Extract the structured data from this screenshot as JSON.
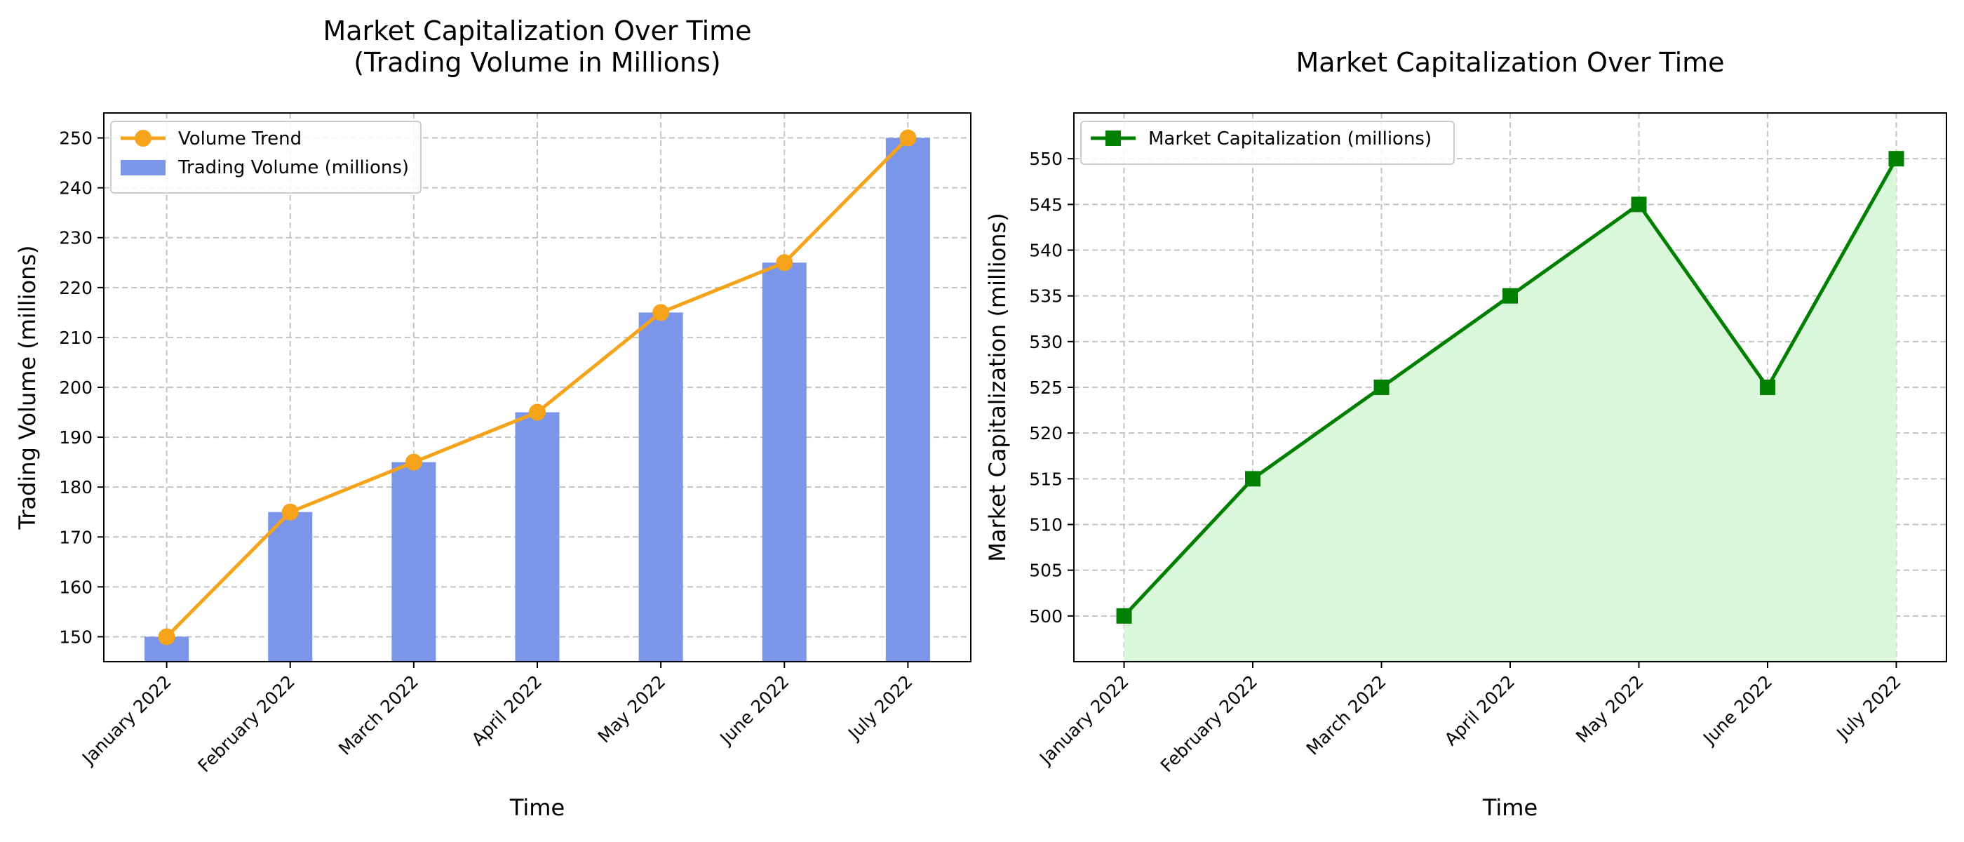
{
  "chart_data": [
    {
      "type": "bar",
      "title": "Market Capitalization Over Time\n(Trading Volume in Millions)",
      "xlabel": "Time",
      "ylabel": "Trading Volume (millions)",
      "categories": [
        "January 2022",
        "February 2022",
        "March 2022",
        "April 2022",
        "May 2022",
        "June 2022",
        "July 2022"
      ],
      "series": [
        {
          "name": "Trading Volume (millions)",
          "kind": "bar",
          "color": "#7b96e8",
          "values": [
            150,
            175,
            185,
            195,
            215,
            225,
            250
          ]
        },
        {
          "name": "Volume Trend",
          "kind": "line",
          "marker": "circle",
          "color": "#f5a31a",
          "values": [
            150,
            175,
            185,
            195,
            215,
            225,
            250
          ]
        }
      ],
      "ylim": [
        145,
        255
      ],
      "yticks": [
        150,
        160,
        170,
        180,
        190,
        200,
        210,
        220,
        230,
        240,
        250
      ],
      "grid": true,
      "legend": "top-left"
    },
    {
      "type": "area",
      "title": "Market Capitalization Over Time",
      "xlabel": "Time",
      "ylabel": "Market Capitalization (millions)",
      "categories": [
        "January 2022",
        "February 2022",
        "March 2022",
        "April 2022",
        "May 2022",
        "June 2022",
        "July 2022"
      ],
      "series": [
        {
          "name": "Market Capitalization (millions)",
          "kind": "line",
          "marker": "square",
          "color": "#007f00",
          "fill": "#dbf7db",
          "values": [
            500,
            515,
            525,
            535,
            545,
            525,
            550
          ]
        }
      ],
      "ylim": [
        495,
        555
      ],
      "yticks": [
        500,
        505,
        510,
        515,
        520,
        525,
        530,
        535,
        540,
        545,
        550
      ],
      "grid": true,
      "legend": "top-left"
    }
  ]
}
